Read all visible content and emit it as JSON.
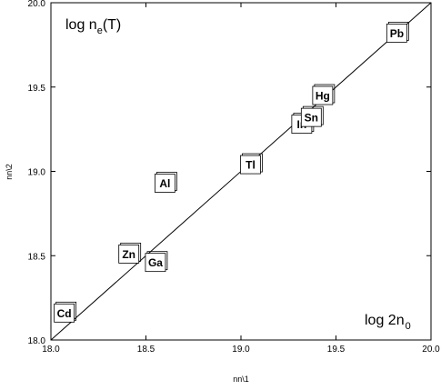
{
  "chart_data": {
    "type": "scatter",
    "title": "",
    "xlabel": "nn\\1",
    "ylabel": "nn\\2",
    "xlim": [
      18.0,
      20.0
    ],
    "ylim": [
      18.0,
      20.0
    ],
    "x_ticks": [
      18.0,
      18.5,
      19.0,
      19.5,
      20.0
    ],
    "y_ticks": [
      18.0,
      18.5,
      19.0,
      19.5,
      20.0
    ],
    "x_tick_labels": [
      "18.0",
      "18.5",
      "19.0",
      "19.5",
      "20.0"
    ],
    "y_tick_labels": [
      "18.0",
      "18.5",
      "19.0",
      "19.5",
      "20.0"
    ],
    "grid": false,
    "reference_line": {
      "from": [
        18.0,
        18.0
      ],
      "to": [
        20.0,
        20.0
      ]
    },
    "annotations": {
      "top_left": {
        "main": "log n",
        "sub": "e",
        "tail": "(T)"
      },
      "bottom_right": {
        "main": "log 2n",
        "sub": "0"
      }
    },
    "points": [
      {
        "label": "Cd",
        "x": 18.07,
        "y": 18.16
      },
      {
        "label": "Zn",
        "x": 18.41,
        "y": 18.51
      },
      {
        "label": "Ga",
        "x": 18.55,
        "y": 18.46
      },
      {
        "label": "Al",
        "x": 18.6,
        "y": 18.93
      },
      {
        "label": "Tl",
        "x": 19.05,
        "y": 19.04
      },
      {
        "label": "In",
        "x": 19.32,
        "y": 19.28
      },
      {
        "label": "Sn",
        "x": 19.37,
        "y": 19.32
      },
      {
        "label": "Hg",
        "x": 19.43,
        "y": 19.45
      },
      {
        "label": "Pb",
        "x": 19.82,
        "y": 19.82
      }
    ]
  }
}
